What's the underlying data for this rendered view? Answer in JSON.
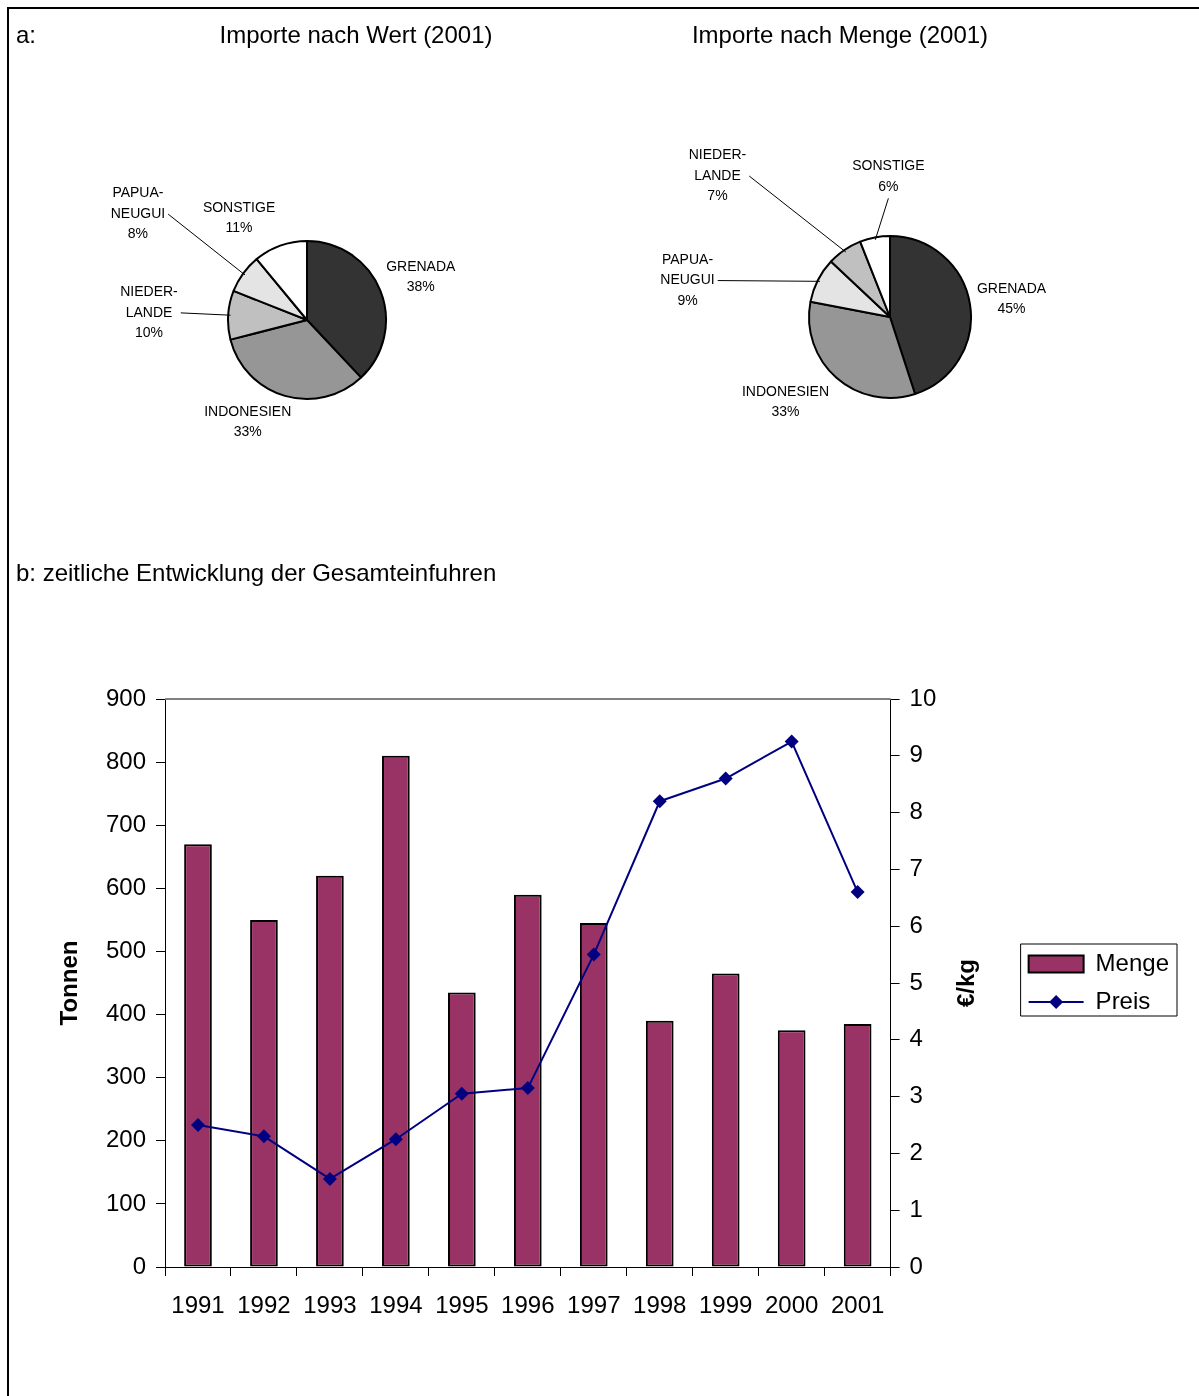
{
  "chart_data": [
    {
      "type": "pie",
      "title": "Importe nach Wert (2001)",
      "annotations": [
        "a:"
      ],
      "categories": [
        "GRENADA",
        "INDONESIEN",
        "NIEDER-LANDE",
        "PAPUA-NEUGUI",
        "SONSTIGE"
      ],
      "values": [
        38,
        33,
        10,
        8,
        11
      ],
      "value_labels": [
        "38%",
        "33%",
        "10%",
        "8%",
        "11%"
      ],
      "colors": [
        "#333333",
        "#969696",
        "#c0c0c0",
        "#e4e4e4",
        "#ffffff"
      ]
    },
    {
      "type": "pie",
      "title": "Importe nach Menge (2001)",
      "categories": [
        "GRENADA",
        "INDONESIEN",
        "PAPUA-NEUGUI",
        "NIEDER-LANDE",
        "SONSTIGE"
      ],
      "values": [
        45,
        33,
        9,
        7,
        6
      ],
      "value_labels": [
        "45%",
        "33%",
        "9%",
        "7%",
        "6%"
      ],
      "colors": [
        "#333333",
        "#969696",
        "#e4e4e4",
        "#c0c0c0",
        "#ffffff"
      ]
    },
    {
      "type": "bar",
      "title": "b: zeitliche Entwicklung der Gesamteinfuhren",
      "categories": [
        "1991",
        "1992",
        "1993",
        "1994",
        "1995",
        "1996",
        "1997",
        "1998",
        "1999",
        "2000",
        "2001"
      ],
      "ylabel": "Tonnen",
      "y2label": "€/kg",
      "ylim": [
        0,
        900
      ],
      "yticks": [
        0,
        100,
        200,
        300,
        400,
        500,
        600,
        700,
        800,
        900
      ],
      "y2lim": [
        0,
        10
      ],
      "y2ticks": [
        0,
        1,
        2,
        3,
        4,
        5,
        6,
        7,
        8,
        9,
        10
      ],
      "grid": false,
      "legend": "right",
      "marker": "diamond",
      "series": [
        {
          "name": "Menge",
          "type": "bar",
          "color": "#993366",
          "values": [
            670,
            550,
            620,
            810,
            435,
            590,
            545,
            390,
            465,
            375,
            385
          ]
        },
        {
          "name": "Preis",
          "type": "line",
          "axis": "y2",
          "color": "#000080",
          "values": [
            2.5,
            2.3,
            1.55,
            2.25,
            3.05,
            3.15,
            5.5,
            8.2,
            8.6,
            9.25,
            6.6
          ]
        }
      ]
    }
  ]
}
